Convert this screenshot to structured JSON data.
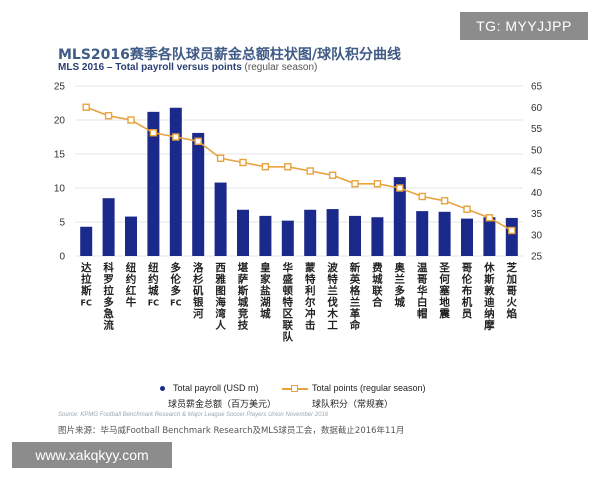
{
  "badge": "TG: MYYJJPP",
  "watermark": "www.xakqkyy.com",
  "title_cn": "MLS2016赛季各队球员薪金总额柱状图/球队积分曲线",
  "title_en_bold": "MLS 2016 – Total payroll versus points",
  "title_en_sub": "(regular season)",
  "legend": {
    "bar_en": "Total payroll (USD m)",
    "bar_cn": "球员薪金总额（百万美元）",
    "line_en": "Total points (regular season)",
    "line_cn": "球队积分（常规赛）"
  },
  "source": "Source: KPMG Football Benchmark Research & Major League Soccer Players Union November 2016",
  "footnote": "图片来源：毕马威Football Benchmark Research及MLS球员工会，数据截止2016年11月",
  "colors": {
    "bar": "#1b2a8a",
    "line": "#e8a33d",
    "grid": "#dcdcdc",
    "axis_text": "#333333"
  },
  "chart_data": {
    "type": "bar",
    "categories": [
      "达拉斯FC",
      "科罗拉多急流",
      "纽约红牛",
      "纽约城FC",
      "多伦多FC",
      "洛杉矶银河",
      "西雅图海湾人",
      "堪萨斯城竞技",
      "皇家盐湖城",
      "华盛顿特区联队",
      "蒙特利尔冲击",
      "波特兰伐木工",
      "新英格兰革命",
      "费城联合",
      "奥兰多城",
      "温哥华白帽",
      "圣何塞地震",
      "哥伦布机员",
      "休斯敦迪纳摩",
      "芝加哥火焰"
    ],
    "series": [
      {
        "name": "Total payroll (USD m)",
        "type": "bar",
        "axis": "left",
        "values": [
          4.3,
          8.5,
          5.8,
          21.2,
          21.8,
          18.1,
          10.8,
          6.8,
          5.9,
          5.2,
          6.8,
          6.9,
          5.9,
          5.7,
          11.6,
          6.6,
          6.5,
          5.5,
          5.7,
          5.6
        ]
      },
      {
        "name": "Total points (regular season)",
        "type": "line",
        "axis": "right",
        "values": [
          60,
          58,
          57,
          54,
          53,
          52,
          48,
          47,
          46,
          46,
          45,
          44,
          42,
          42,
          41,
          39,
          38,
          36,
          34,
          31
        ]
      }
    ],
    "ylim": [
      0,
      25
    ],
    "yticks": [
      0,
      5,
      10,
      15,
      20,
      25
    ],
    "y2lim": [
      25,
      65
    ],
    "y2ticks": [
      25,
      30,
      35,
      40,
      45,
      50,
      55,
      60,
      65
    ],
    "grid": true,
    "legend_position": "bottom"
  }
}
